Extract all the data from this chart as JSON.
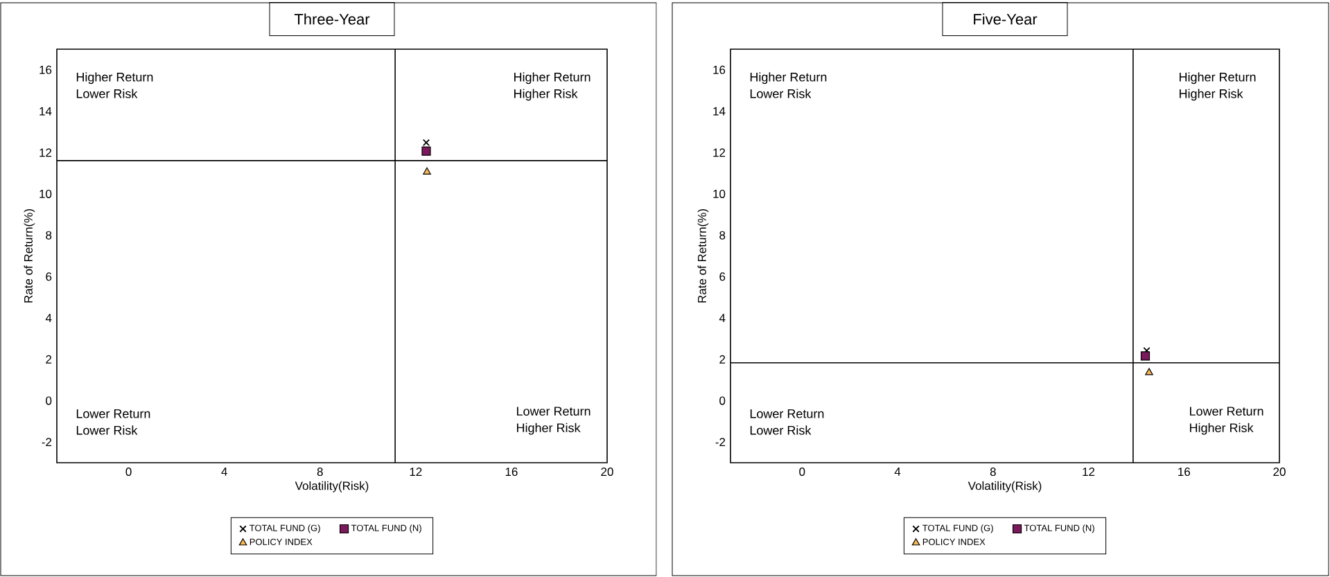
{
  "chart_data": [
    {
      "type": "scatter",
      "title": "Three-Year",
      "xlabel": "Volatility(Risk)",
      "ylabel": "Rate of Return(%)",
      "xlim": [
        -3,
        20
      ],
      "ylim": [
        -3,
        17
      ],
      "xticks": [
        0,
        4,
        8,
        12,
        16,
        20
      ],
      "yticks": [
        -2,
        0,
        2,
        4,
        6,
        8,
        10,
        12,
        14,
        16
      ],
      "legend": "bottom",
      "grid": false,
      "series": [
        {
          "name": "TOTAL FUND  (G)",
          "color": "#000000",
          "marker": "cross",
          "x": [
            12.44
          ],
          "values": [
            12.48
          ]
        },
        {
          "name": "TOTAL FUND  (N)",
          "color": "#7a1a5c",
          "marker": "square",
          "x": [
            12.44
          ],
          "values": [
            12.07
          ]
        },
        {
          "name": "POLICY INDEX",
          "color": "#f7b955",
          "marker": "triangle",
          "x": [
            12.47
          ],
          "values": [
            11.06
          ]
        }
      ],
      "ref_lines": [
        {
          "axis": "x",
          "value": 11.14
        },
        {
          "axis": "y",
          "value": 11.61
        }
      ],
      "annotations": [
        "Higher Return",
        "Lower Risk",
        "Higher Return",
        "Higher Risk",
        "Lower Return",
        "Lower Risk",
        "Lower Return",
        "Higher Risk"
      ]
    },
    {
      "type": "scatter",
      "title": "Five-Year",
      "xlabel": "Volatility(Risk)",
      "ylabel": "Rate of Return(%)",
      "xlim": [
        -3,
        20
      ],
      "ylim": [
        -3,
        17
      ],
      "xticks": [
        0,
        4,
        8,
        12,
        16,
        20
      ],
      "yticks": [
        -2,
        0,
        2,
        4,
        6,
        8,
        10,
        12,
        14,
        16
      ],
      "legend": "bottom",
      "grid": false,
      "series": [
        {
          "name": "TOTAL FUND  (G)",
          "color": "#000000",
          "marker": "cross",
          "x": [
            14.44
          ],
          "values": [
            2.42
          ]
        },
        {
          "name": "TOTAL FUND  (N)",
          "color": "#7a1a5c",
          "marker": "square",
          "x": [
            14.38
          ],
          "values": [
            2.16
          ]
        },
        {
          "name": "POLICY INDEX",
          "color": "#f7b955",
          "marker": "triangle",
          "x": [
            14.54
          ],
          "values": [
            1.36
          ]
        }
      ],
      "ref_lines": [
        {
          "axis": "x",
          "value": 13.87
        },
        {
          "axis": "y",
          "value": 1.83
        }
      ],
      "annotations": [
        "Higher Return",
        "Lower Risk",
        "Higher Return",
        "Higher Risk",
        "Lower Return",
        "Lower Risk",
        "Lower Return",
        "Higher Risk"
      ]
    }
  ]
}
